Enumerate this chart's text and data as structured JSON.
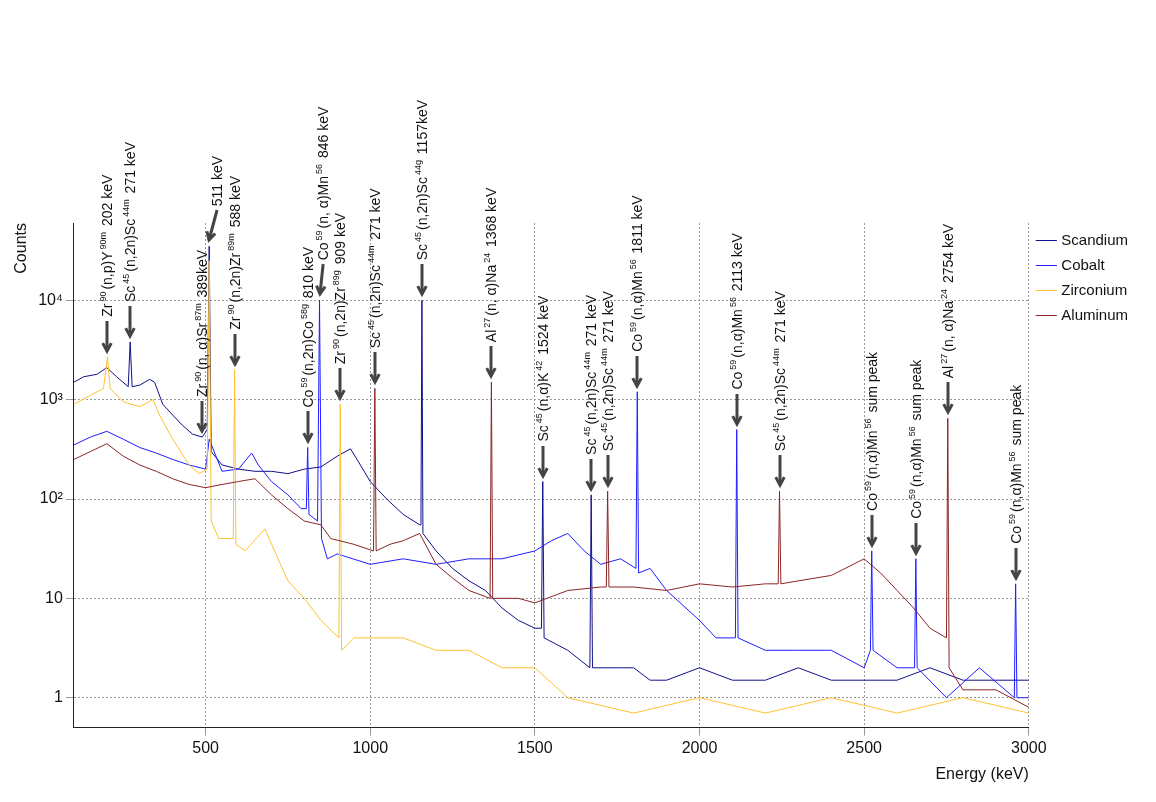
{
  "chart_data": {
    "type": "line",
    "xlabel": "Energy (keV)",
    "ylabel": "Counts",
    "xlim": [
      100,
      3000
    ],
    "xticks": [
      500,
      1000,
      1500,
      2000,
      2500,
      3000
    ],
    "ylim": [
      0.5,
      60000
    ],
    "yticks": [
      1,
      10,
      {
        "value": 100,
        "label": "10²"
      },
      {
        "value": 1000,
        "label": "10³"
      },
      {
        "value": 10000,
        "label": "10⁴"
      }
    ],
    "log": "y",
    "grid": true,
    "legend": "top right",
    "series": [
      {
        "name": "Scandium",
        "color": "#10108a",
        "x": [
          100,
          130,
          170,
          200,
          230,
          265,
          271,
          277,
          300,
          330,
          345,
          370,
          400,
          430,
          460,
          490,
          505,
          511,
          517,
          550,
          600,
          650,
          700,
          750,
          800,
          850,
          900,
          940,
          960,
          1000,
          1050,
          1100,
          1150,
          1154,
          1157,
          1160,
          1200,
          1250,
          1300,
          1350,
          1400,
          1450,
          1500,
          1520,
          1524,
          1528,
          1600,
          1667,
          1671,
          1675,
          1750,
          1800,
          1850,
          1900,
          2000,
          2100,
          2200,
          2300,
          2400,
          2500,
          2600,
          2700,
          2800,
          2900,
          3000
        ],
        "values": [
          1500,
          1700,
          1800,
          2100,
          1700,
          1350,
          3800,
          1350,
          1400,
          1600,
          1500,
          900,
          700,
          550,
          450,
          420,
          500,
          35000,
          300,
          220,
          200,
          190,
          190,
          180,
          200,
          210,
          270,
          320,
          250,
          150,
          100,
          70,
          55,
          55,
          10000,
          45,
          30,
          20,
          15,
          12,
          8,
          6,
          5,
          5,
          150,
          4,
          3,
          2,
          110,
          2,
          2,
          2,
          1.5,
          1.5,
          2,
          1.5,
          1.5,
          2,
          1.5,
          1.5,
          1.5,
          2,
          1.5,
          1.5,
          1.5
        ]
      },
      {
        "name": "Cobalt",
        "color": "#1f1fff",
        "x": [
          100,
          150,
          200,
          250,
          300,
          350,
          400,
          450,
          500,
          511,
          550,
          600,
          640,
          660,
          700,
          750,
          790,
          806,
          810,
          814,
          840,
          846,
          852,
          870,
          900,
          1000,
          1100,
          1200,
          1300,
          1400,
          1500,
          1550,
          1600,
          1650,
          1700,
          1760,
          1807,
          1811,
          1815,
          1850,
          1900,
          2000,
          2050,
          2109,
          2113,
          2117,
          2200,
          2300,
          2400,
          2500,
          2519,
          2523,
          2527,
          2600,
          2653,
          2657,
          2661,
          2750,
          2850,
          2956,
          2960,
          2964,
          3000
        ],
        "values": [
          350,
          420,
          480,
          400,
          330,
          290,
          250,
          220,
          200,
          400,
          190,
          200,
          290,
          220,
          150,
          110,
          80,
          80,
          330,
          70,
          60,
          10000,
          40,
          25,
          28,
          22,
          25,
          22,
          25,
          25,
          30,
          38,
          45,
          30,
          22,
          25,
          20,
          1200,
          18,
          20,
          12,
          6,
          4,
          4,
          500,
          4,
          3,
          3,
          3,
          2,
          3,
          30,
          3,
          2,
          2,
          25,
          2,
          1,
          2,
          1,
          14,
          1,
          1
        ]
      },
      {
        "name": "Zirconium",
        "color": "#ffc12e",
        "x": [
          100,
          150,
          190,
          202,
          210,
          250,
          300,
          340,
          360,
          400,
          450,
          480,
          505,
          511,
          517,
          540,
          584,
          588,
          592,
          620,
          680,
          720,
          750,
          800,
          850,
          905,
          909,
          913,
          950,
          1000,
          1100,
          1200,
          1300,
          1400,
          1500,
          1600,
          1800,
          2000,
          2200,
          2400,
          2600,
          2800,
          3000
        ],
        "values": [
          900,
          1100,
          1300,
          2700,
          1300,
          950,
          850,
          1000,
          700,
          400,
          220,
          180,
          200,
          25000,
          60,
          40,
          40,
          2000,
          35,
          30,
          50,
          25,
          15,
          10,
          6,
          4,
          900,
          3,
          4,
          4,
          4,
          3,
          3,
          2,
          2,
          1,
          0.7,
          1,
          0.7,
          1,
          0.7,
          1,
          0.7
        ]
      },
      {
        "name": "Aluminum",
        "color": "#8b2525",
        "x": [
          100,
          150,
          200,
          250,
          300,
          350,
          400,
          450,
          500,
          550,
          600,
          650,
          700,
          750,
          800,
          850,
          880,
          950,
          1010,
          1014,
          1018,
          1060,
          1100,
          1150,
          1200,
          1250,
          1300,
          1364,
          1368,
          1372,
          1450,
          1500,
          1600,
          1700,
          1717,
          1721,
          1725,
          1800,
          1900,
          2000,
          2100,
          2200,
          2239,
          2243,
          2247,
          2300,
          2400,
          2500,
          2550,
          2600,
          2650,
          2700,
          2750,
          2754,
          2758,
          2800,
          2900,
          3000
        ],
        "values": [
          250,
          300,
          360,
          270,
          220,
          190,
          160,
          140,
          130,
          140,
          150,
          160,
          110,
          80,
          60,
          55,
          40,
          35,
          30,
          1300,
          30,
          35,
          38,
          45,
          22,
          16,
          12,
          10,
          1500,
          10,
          10,
          9,
          12,
          13,
          13,
          120,
          13,
          13,
          12,
          14,
          13,
          14,
          14,
          120,
          14,
          15,
          17,
          25,
          18,
          12,
          8,
          5,
          4,
          650,
          2,
          1.2,
          1.2,
          0.8
        ]
      }
    ],
    "annotations": [
      {
        "text": "Zr$^{90}$(n,p)Y$^{90m}$ 202 keV",
        "x": 202,
        "y": 2700
      },
      {
        "text": "Sc$^{45}$(n,2n)Sc$^{44m}$ 271 keV",
        "x": 271,
        "y": 3800
      },
      {
        "text": "Zr$^{90}$(n, α)Sr$^{87m}$ 389keV",
        "x": 490,
        "y": 420
      },
      {
        "text": "511 keV",
        "x": 511,
        "y": 35000
      },
      {
        "text": "Zr$^{90}$(n,2n)Zr$^{89m}$ 588 keV",
        "x": 588,
        "y": 2000
      },
      {
        "text": "Co$^{59}$(n,2n)Co$^{58g}$ 810 keV",
        "x": 810,
        "y": 330
      },
      {
        "text": "Co$^{59}$(n, α)Mn$^{56}$ 846 keV",
        "x": 846,
        "y": 10000
      },
      {
        "text": "Zr$^{90}$(n,2n)Zr$^{89g}$ 909 keV",
        "x": 909,
        "y": 900
      },
      {
        "text": "Sc$^{45}$(n,2n)Sc$^{44m}$ 271 keV",
        "x": 1014,
        "y": 1300
      },
      {
        "text": "Sc$^{45}$(n,2n)Sc$^{44g}$ 1157keV",
        "x": 1157,
        "y": 10000
      },
      {
        "text": "Al$^{27}$(n, α)Na$^{24}$ 1368 keV",
        "x": 1368,
        "y": 1500
      },
      {
        "text": "Sc$^{45}$(n,α)K$^{42}$ 1524 keV",
        "x": 1524,
        "y": 150
      },
      {
        "text": "Sc$^{45}$(n,2n)Sc$^{44m}$ 271 keV",
        "x": 1671,
        "y": 110
      },
      {
        "text": "Sc$^{45}$(n,2n)Sc$^{44m}$ 271 keV",
        "x": 1721,
        "y": 120
      },
      {
        "text": "Co$^{59}$(n,α)Mn$^{56}$ 1811 keV",
        "x": 1811,
        "y": 1200
      },
      {
        "text": "Co$^{59}$(n,α)Mn$^{56}$ 2113 keV",
        "x": 2113,
        "y": 500
      },
      {
        "text": "Sc$^{45}$(n,2n)Sc$^{44m}$ 271 keV",
        "x": 2243,
        "y": 120
      },
      {
        "text": "Co$^{59}$(n,α)Mn$^{56}$ sum peak",
        "x": 2523,
        "y": 30
      },
      {
        "text": "Co$^{59}$(n,α)Mn$^{56}$ sum peak",
        "x": 2657,
        "y": 25
      },
      {
        "text": "Al$^{27}$(n, α)Na$^{24}$ 2754 keV",
        "x": 2754,
        "y": 650
      },
      {
        "text": "Co$^{59}$(n,α)Mn$^{56}$ sum peak",
        "x": 2960,
        "y": 14
      }
    ]
  }
}
